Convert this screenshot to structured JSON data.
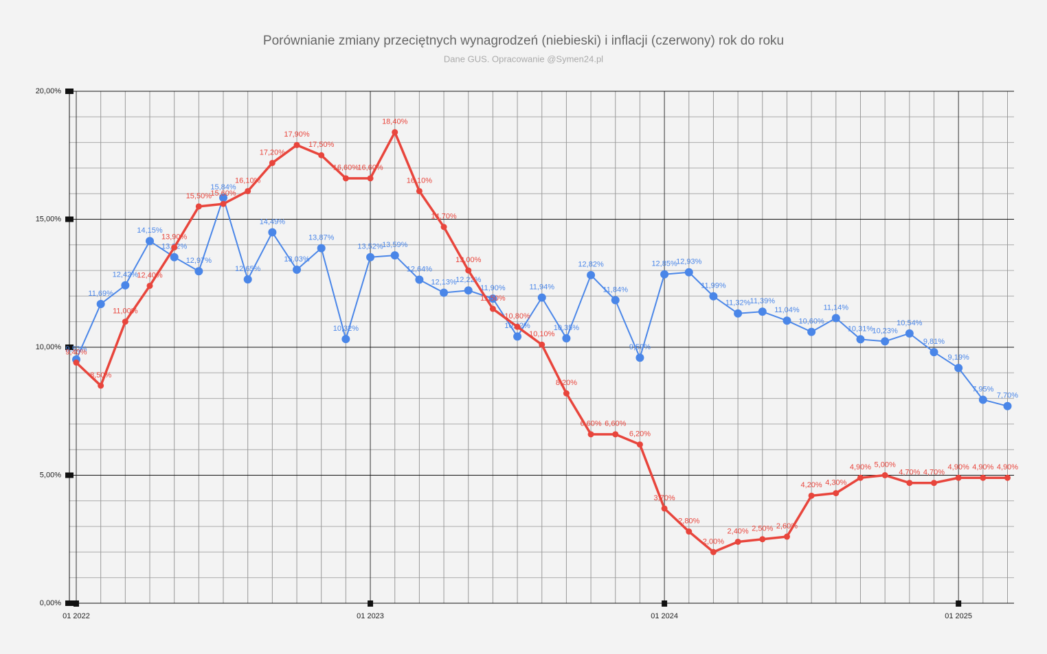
{
  "chart_data": {
    "type": "line",
    "title": "Porównianie zmiany przeciętnych wynagrodzeń (niebieski) i inflacji (czerwony) rok do roku",
    "subtitle": "Dane GUS. Opracowanie @Symen24.pl",
    "categories": [
      "01 2022",
      null,
      null,
      null,
      null,
      null,
      null,
      null,
      null,
      null,
      null,
      null,
      "01 2023",
      null,
      null,
      null,
      null,
      null,
      null,
      null,
      null,
      null,
      null,
      null,
      "01 2024",
      null,
      null,
      null,
      null,
      null,
      null,
      null,
      null,
      null,
      null,
      null,
      "01 2025",
      null,
      null
    ],
    "ylim": [
      0,
      20
    ],
    "yticks": [
      {
        "value": 0,
        "label": "0,00%"
      },
      {
        "value": 5,
        "label": "5,00%"
      },
      {
        "value": 10,
        "label": "10,00%"
      },
      {
        "value": 15,
        "label": "15,00%"
      },
      {
        "value": 20,
        "label": "20,00%"
      }
    ],
    "grid": true,
    "series": [
      {
        "name": "wynagrodzenia",
        "color": "#4a86e8",
        "values": [
          9.52,
          11.69,
          12.42,
          14.15,
          13.52,
          12.97,
          15.84,
          12.65,
          14.49,
          13.03,
          13.87,
          10.32,
          13.52,
          13.59,
          12.64,
          12.13,
          12.22,
          11.9,
          10.42,
          11.94,
          10.35,
          12.82,
          11.84,
          9.59,
          12.85,
          12.93,
          11.99,
          11.32,
          11.39,
          11.04,
          10.6,
          11.14,
          10.31,
          10.23,
          10.54,
          9.81,
          9.19,
          7.95,
          7.7
        ],
        "value_labels": [
          "9,52%",
          "11,69%",
          "12,42%",
          "14,15%",
          "13,52%",
          "12,97%",
          "15,84%",
          "12,65%",
          "14,49%",
          "13,03%",
          "13,87%",
          "10,32%",
          "13,52%",
          "13,59%",
          "12,64%",
          "12,13%",
          "12,22%",
          "11,90%",
          "10,42%",
          "11,94%",
          "10,35%",
          "12,82%",
          "11,84%",
          "9,59%",
          "12,85%",
          "12,93%",
          "11,99%",
          "11,32%",
          "11,39%",
          "11,04%",
          "10,60%",
          "11,14%",
          "10,31%",
          "10,23%",
          "10,54%",
          "9,81%",
          "9,19%",
          "7,95%",
          "7,70%"
        ]
      },
      {
        "name": "inflacja",
        "color": "#e8453c",
        "values": [
          9.4,
          8.5,
          11.0,
          12.4,
          13.9,
          15.5,
          15.6,
          16.1,
          17.2,
          17.9,
          17.5,
          16.6,
          16.6,
          18.4,
          16.1,
          14.7,
          13.0,
          11.5,
          10.8,
          10.1,
          8.2,
          6.6,
          6.6,
          6.2,
          3.7,
          2.8,
          2.0,
          2.4,
          2.5,
          2.6,
          4.2,
          4.3,
          4.9,
          5.0,
          4.7,
          4.7,
          4.9,
          4.9,
          4.9
        ],
        "value_labels": [
          "9,40%",
          "8,50%",
          "11,00%",
          "12,40%",
          "13,90%",
          "15,50%",
          "15,60%",
          "16,10%",
          "17,20%",
          "17,90%",
          "17,50%",
          "16,60%",
          "16,60%",
          "18,40%",
          "16,10%",
          "14,70%",
          "13,00%",
          "11,50%",
          "10,80%",
          "10,10%",
          "8,20%",
          "6,60%",
          "6,60%",
          "6,20%",
          "3,70%",
          "2,80%",
          "2,00%",
          "2,40%",
          "2,50%",
          "2,60%",
          "4,20%",
          "4,30%",
          "4,90%",
          "5,00%",
          "4,70%",
          "4,70%",
          "4,90%",
          "4,90%",
          "4,90%"
        ]
      }
    ]
  }
}
